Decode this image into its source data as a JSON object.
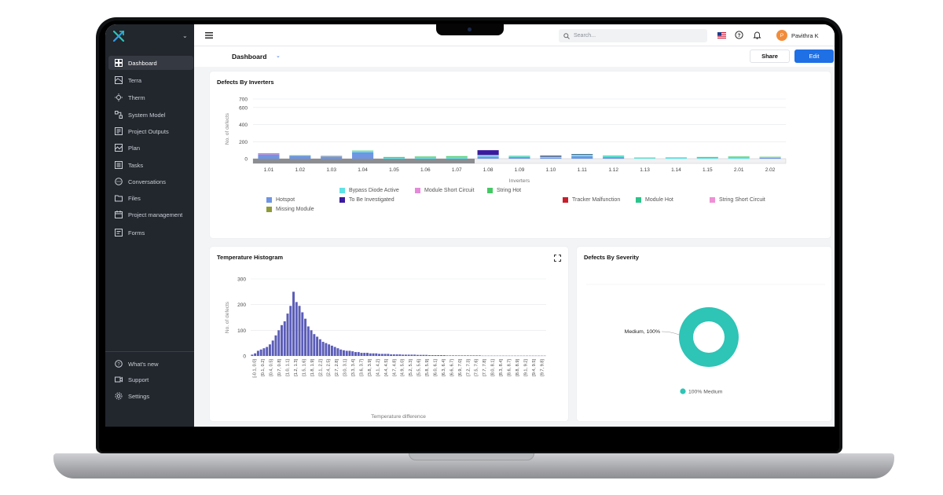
{
  "nav": {
    "items": [
      {
        "label": "Dashboard",
        "icon": "dashboard-icon",
        "active": true
      },
      {
        "label": "Terra",
        "icon": "map-icon"
      },
      {
        "label": "Therm",
        "icon": "thermal-icon"
      },
      {
        "label": "System Model",
        "icon": "system-model-icon"
      },
      {
        "label": "Project Outputs",
        "icon": "outputs-icon"
      },
      {
        "label": "Plan",
        "icon": "plan-icon"
      },
      {
        "label": "Tasks",
        "icon": "tasks-icon"
      },
      {
        "label": "Conversations",
        "icon": "chat-icon"
      },
      {
        "label": "Files",
        "icon": "folder-icon"
      },
      {
        "label": "Project management",
        "icon": "calendar-icon"
      },
      {
        "label": "Forms",
        "icon": "form-icon"
      }
    ],
    "bottom": [
      {
        "label": "What's new",
        "icon": "question-icon"
      },
      {
        "label": "Support",
        "icon": "video-icon"
      },
      {
        "label": "Settings",
        "icon": "gear-icon"
      }
    ]
  },
  "topbar": {
    "search_placeholder": "Search...",
    "user_initial": "P",
    "user_name": "Pavithra K"
  },
  "subbar": {
    "title": "Dashboard",
    "share_label": "Share",
    "edit_label": "Edit"
  },
  "colors": {
    "accent": "#1f6fe5",
    "sidebar_bg": "#22262d",
    "histogram_bar": "#5b5db8",
    "donut": "#2ec4b6"
  },
  "chart_data": [
    {
      "type": "bar",
      "title": "Defects By Inverters",
      "xlabel": "Inverters",
      "ylabel": "No. of defects",
      "ylim": [
        0,
        700
      ],
      "yticks": [
        "700",
        "600",
        "400",
        "200",
        "0"
      ],
      "categories": [
        "1.01",
        "1.02",
        "1.03",
        "1.04",
        "1.05",
        "1.06",
        "1.07",
        "1.08",
        "1.09",
        "1.10",
        "1.11",
        "1.12",
        "1.13",
        "1.14",
        "1.15",
        "2.01",
        "2.02"
      ],
      "series": [
        {
          "name": "Hotspot",
          "color": "#6f95e3",
          "values": [
            50,
            35,
            25,
            75,
            0,
            0,
            0,
            25,
            20,
            10,
            30,
            18,
            0,
            0,
            0,
            0,
            12
          ]
        },
        {
          "name": "Bypass Diode Active",
          "color": "#5ee3e6",
          "values": [
            0,
            0,
            0,
            15,
            10,
            15,
            20,
            10,
            10,
            10,
            15,
            15,
            8,
            10,
            10,
            15,
            5
          ]
        },
        {
          "name": "Module Short Circuit",
          "color": "#e58ad9",
          "values": [
            10,
            0,
            5,
            0,
            0,
            0,
            0,
            5,
            0,
            0,
            0,
            0,
            0,
            0,
            0,
            0,
            0
          ]
        },
        {
          "name": "String Hot",
          "color": "#45c964",
          "values": [
            5,
            5,
            5,
            5,
            10,
            10,
            10,
            5,
            5,
            5,
            5,
            5,
            5,
            5,
            10,
            10,
            5
          ]
        },
        {
          "name": "Missing Module",
          "color": "#8f9a3a",
          "values": [
            0,
            0,
            0,
            0,
            0,
            0,
            0,
            0,
            0,
            0,
            0,
            0,
            0,
            0,
            0,
            0,
            0
          ]
        },
        {
          "name": "To Be Investigated",
          "color": "#3a1aa0",
          "values": [
            0,
            0,
            0,
            0,
            0,
            0,
            0,
            55,
            0,
            10,
            5,
            0,
            0,
            0,
            0,
            0,
            0
          ]
        },
        {
          "name": "Tracker Malfunction",
          "color": "#c81e2c",
          "values": [
            0,
            0,
            0,
            0,
            0,
            0,
            0,
            0,
            0,
            0,
            0,
            0,
            0,
            0,
            0,
            0,
            0
          ]
        },
        {
          "name": "Module Hot",
          "color": "#2bc48a",
          "values": [
            0,
            0,
            0,
            0,
            0,
            0,
            0,
            0,
            0,
            0,
            0,
            0,
            0,
            0,
            0,
            0,
            0
          ]
        },
        {
          "name": "String Short Circuit",
          "color": "#ef8fd6",
          "values": [
            0,
            0,
            0,
            0,
            0,
            0,
            0,
            0,
            0,
            0,
            0,
            0,
            0,
            0,
            0,
            0,
            0
          ]
        }
      ]
    },
    {
      "type": "bar",
      "title": "Temperature Histogram",
      "xlabel": "Temperature difference",
      "ylabel": "No. of defects",
      "ylim": [
        0,
        300
      ],
      "yticks": [
        "300",
        "200",
        "100",
        "0"
      ],
      "tick_labels": [
        "[-0.1, 0.0]",
        "[0.1, 0.2]",
        "[0.4, 0.5]",
        "[0.7, 0.8]",
        "[1.0, 1.1]",
        "[1.2, 1.3]",
        "[1.5, 1.6]",
        "[1.8, 1.9]",
        "[2.1, 2.2]",
        "[2.4, 2.5]",
        "[2.7, 2.8]",
        "[3.0, 3.1]",
        "[3.3, 3.4]",
        "[3.6, 3.7]",
        "[3.8, 3.9]",
        "[4.1, 4.2]",
        "[4.4, 4.5]",
        "[4.7, 4.8]",
        "[4.9, 5.0]",
        "[5.2, 5.3]",
        "[5.5, 5.6]",
        "[5.8, 5.9]",
        "[6.0, 6.1]",
        "[6.3, 6.4]",
        "[6.6, 6.7]",
        "[6.9, 7.0]",
        "[7.2, 7.3]",
        "[7.5, 7.6]",
        "[7.7, 7.8]",
        "[8.0, 8.1]",
        "[8.3, 8.4]",
        "[8.6, 8.7]",
        "[8.8, 8.9]",
        "[9.1, 9.2]",
        "[9.4, 9.5]",
        "[9.7, 9.8]"
      ],
      "values": [
        5,
        10,
        20,
        25,
        30,
        35,
        45,
        60,
        80,
        100,
        120,
        135,
        165,
        195,
        250,
        210,
        195,
        170,
        145,
        115,
        100,
        85,
        75,
        65,
        55,
        50,
        45,
        40,
        35,
        30,
        25,
        22,
        20,
        20,
        18,
        15,
        15,
        12,
        12,
        12,
        10,
        10,
        10,
        8,
        8,
        8,
        8,
        6,
        6,
        6,
        6,
        5,
        5,
        5,
        5,
        5,
        4,
        4,
        4,
        4,
        3,
        3,
        3,
        3,
        3,
        3,
        2,
        2,
        2,
        2,
        2,
        2,
        2,
        2,
        2,
        2,
        2,
        2,
        1,
        1,
        1,
        1,
        1,
        1,
        1,
        1,
        1,
        1,
        1,
        1,
        1,
        1,
        1,
        1,
        1,
        1,
        1,
        1,
        1,
        1
      ]
    },
    {
      "type": "pie",
      "title": "Defects By Severity",
      "slices": [
        {
          "label": "Medium",
          "value": 100,
          "color": "#2ec4b6"
        }
      ],
      "slice_label": "Medium, 100%",
      "legend_label": "100% Medium"
    }
  ]
}
